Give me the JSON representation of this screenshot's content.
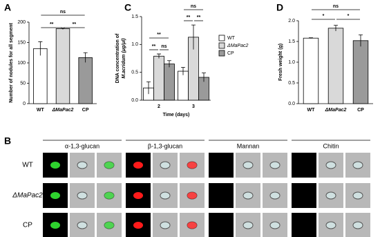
{
  "chart_data": [
    {
      "type": "bar",
      "label": "A",
      "ylabel": [
        "Number of nodules for all segment"
      ],
      "categories": [
        "WT",
        "ΔMaPac2",
        "CP"
      ],
      "values": [
        135,
        184,
        113
      ],
      "errors": [
        17,
        2,
        12
      ],
      "colors": [
        "#ffffff",
        "#d9d9d9",
        "#9a9a9a"
      ],
      "ylim": [
        0,
        200
      ],
      "yticks": [
        0,
        50,
        100,
        150,
        200
      ],
      "annotations": [
        "**",
        "**",
        "ns"
      ]
    },
    {
      "type": "grouped_bar",
      "label": "C",
      "ylabel": [
        "DNA concentration of",
        "M.acridum (μg/μl)"
      ],
      "xlabel": "Time (days)",
      "categories": [
        "2",
        "3"
      ],
      "series": [
        {
          "name": "WT",
          "color": "#ffffff",
          "values": [
            0.22,
            0.52
          ],
          "errors": [
            0.11,
            0.07
          ]
        },
        {
          "name": "ΔMaPac2",
          "color": "#d9d9d9",
          "values": [
            0.79,
            1.13
          ],
          "errors": [
            0.04,
            0.22
          ]
        },
        {
          "name": "CP",
          "color": "#9a9a9a",
          "values": [
            0.65,
            0.41
          ],
          "errors": [
            0.06,
            0.08
          ]
        }
      ],
      "ylim": [
        0,
        1.5
      ],
      "yticks": [
        {
          "value": 0,
          "label": "0.0"
        },
        {
          "value": 0.5,
          "label": "0.5"
        },
        {
          "value": 1,
          "label": "1.0"
        },
        {
          "value": 1.5,
          "label": "1.5"
        }
      ],
      "legend": "upper right",
      "annotations": [
        "**",
        "**",
        "ns",
        "ns",
        "**",
        "**"
      ]
    },
    {
      "type": "bar",
      "label": "D",
      "ylabel": [
        "Fresh weight (g)"
      ],
      "categories": [
        "WT",
        "ΔMaPac2",
        "CP"
      ],
      "values": [
        1.58,
        1.82,
        1.52
      ],
      "errors": [
        0.01,
        0.07,
        0.14
      ],
      "colors": [
        "#ffffff",
        "#d9d9d9",
        "#9a9a9a"
      ],
      "ylim": [
        0,
        2
      ],
      "yticks": [
        {
          "value": 0,
          "label": "0.0"
        },
        {
          "value": 0.5,
          "label": "0.5"
        },
        {
          "value": 1,
          "label": "1.0"
        },
        {
          "value": 1.5,
          "label": "1.5"
        },
        {
          "value": 2,
          "label": "2.0"
        }
      ],
      "annotations": [
        "ns",
        "*",
        "*"
      ]
    }
  ],
  "microscopy": {
    "label": "B",
    "stains": [
      "α-1,3-glucan",
      "β-1,3-glucan",
      "Mannan",
      "Chitin"
    ],
    "strains": [
      "WT",
      "ΔMaPac2",
      "CP"
    ]
  }
}
